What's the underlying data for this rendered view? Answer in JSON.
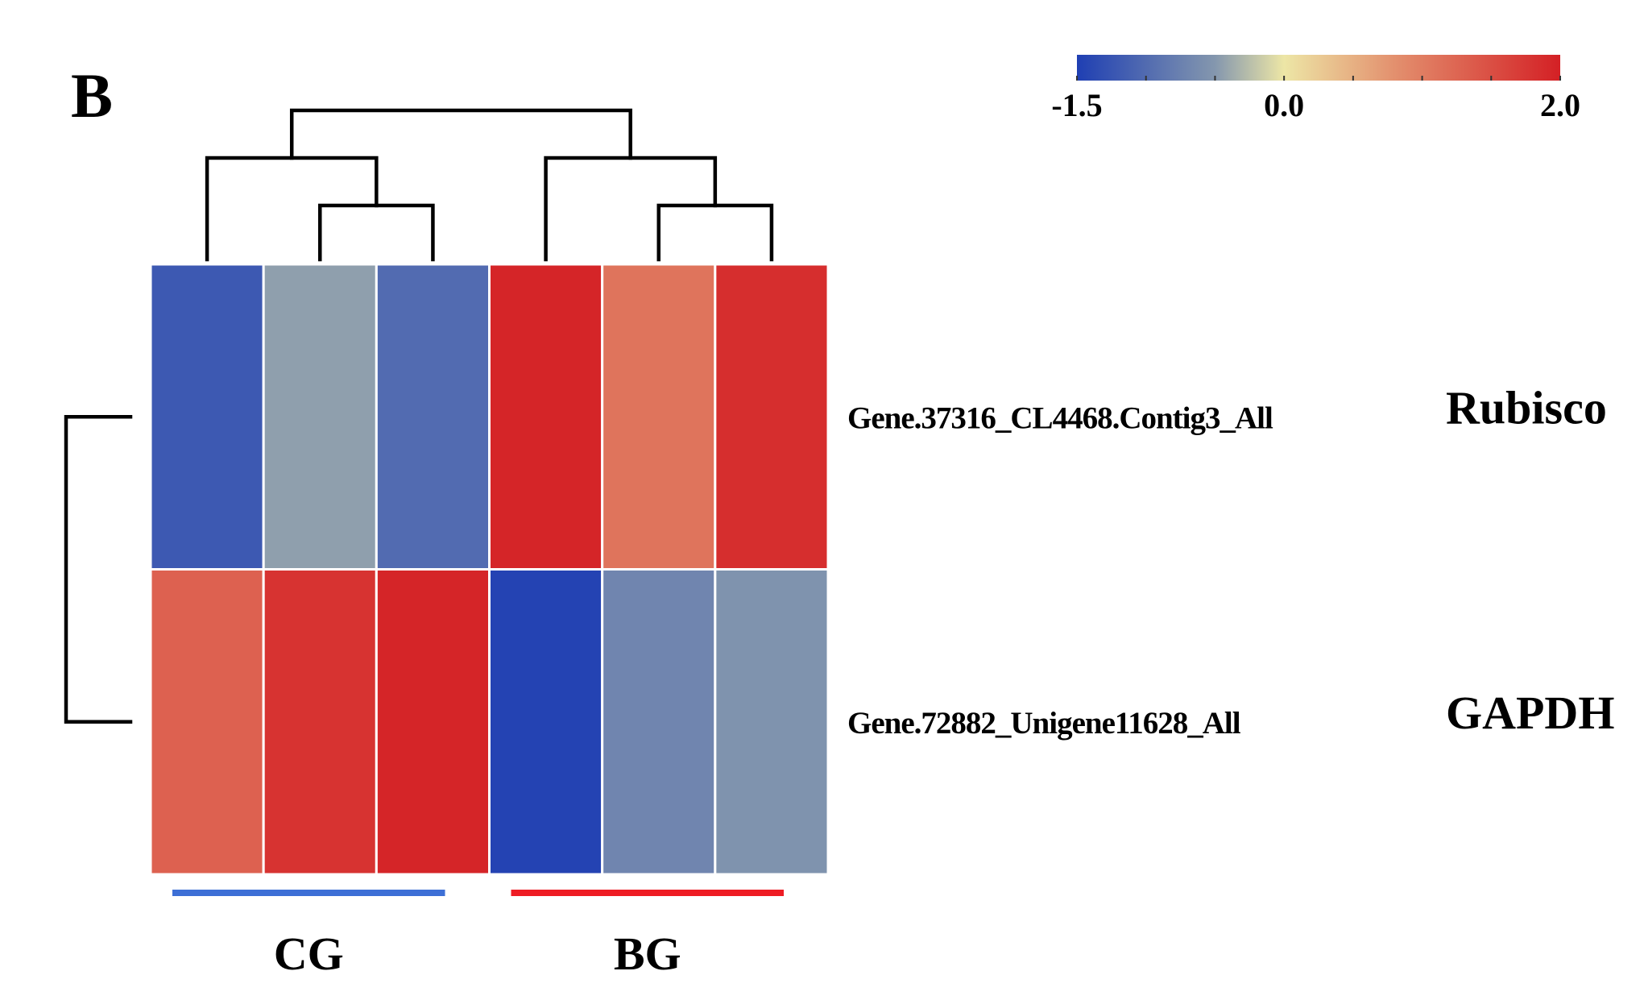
{
  "panel_label": "B",
  "chart_data": {
    "type": "heatmap",
    "rows": [
      {
        "label": "Gene.37316_CL4468.Contig3_All",
        "annotation": "Rubisco"
      },
      {
        "label": "Gene.72882_Unigene11628_All",
        "annotation": "GAPDH"
      }
    ],
    "groups": [
      {
        "label": "CG",
        "columns": [
          0,
          1,
          2
        ],
        "color": "#3d6fd6"
      },
      {
        "label": "BG",
        "columns": [
          3,
          4,
          5
        ],
        "color": "#ee1c24"
      }
    ],
    "values": [
      [
        -1.2,
        -0.45,
        -1.0,
        1.95,
        1.1,
        1.85
      ],
      [
        1.3,
        1.8,
        1.95,
        -1.45,
        -0.7,
        -0.55
      ]
    ],
    "colorscale": {
      "min": -1.5,
      "max": 2.0,
      "tick_labels": [
        "-1.5",
        "0.0",
        "2.0"
      ],
      "stops": [
        {
          "value": -1.5,
          "color": "#1f3fb3"
        },
        {
          "value": -0.5,
          "color": "#8497ae"
        },
        {
          "value": 0.0,
          "color": "#ede6a6"
        },
        {
          "value": 0.8,
          "color": "#e3906e"
        },
        {
          "value": 2.0,
          "color": "#d42025"
        }
      ]
    },
    "column_dendrogram": [
      [
        0,
        1,
        2
      ],
      [
        [
          0
        ],
        [
          [
            1
          ],
          [
            2
          ]
        ]
      ],
      [
        3,
        4,
        5
      ],
      [
        [
          3
        ],
        [
          [
            4
          ],
          [
            5
          ]
        ]
      ]
    ],
    "row_dendrogram": [
      0,
      1
    ]
  }
}
